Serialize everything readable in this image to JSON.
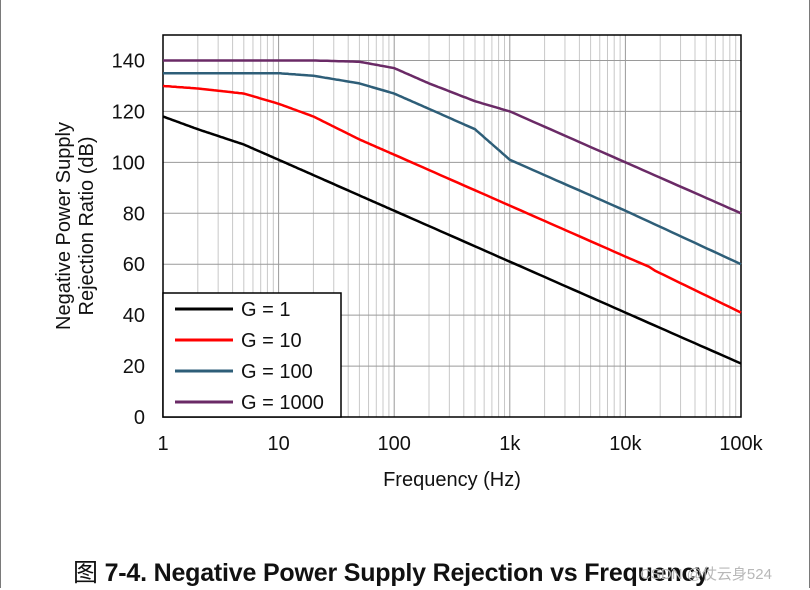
{
  "caption": {
    "figure_prefix": "图",
    "figure_title": "7-4. Negative Power Supply Rejection vs Frequency"
  },
  "watermark": "CSDN @仗云身524",
  "colors": {
    "g1": "#000000",
    "g10": "#ff0000",
    "g100": "#2e5e78",
    "g1000": "#6a2a66",
    "grid_major": "#9a9a9a",
    "grid_minor": "#c8c8c8"
  },
  "chart_data": {
    "type": "line",
    "title": "",
    "xlabel": "Frequency (Hz)",
    "ylabel_line1": "Negative Power Supply",
    "ylabel_line2": "Rejection Ratio (dB)",
    "xscale": "log",
    "xlim": [
      1,
      100000
    ],
    "ylim": [
      0,
      150
    ],
    "x_ticks": [
      1,
      10,
      100,
      1000,
      10000,
      100000
    ],
    "x_tick_labels": [
      "1",
      "10",
      "100",
      "1k",
      "10k",
      "100k"
    ],
    "y_ticks": [
      0,
      20,
      40,
      60,
      80,
      100,
      120,
      140
    ],
    "y_tick_labels": [
      "0",
      "20",
      "40",
      "60",
      "80",
      "100",
      "120",
      "140"
    ],
    "grid": true,
    "legend_position": "bottom-left",
    "series": [
      {
        "name": "G = 1",
        "color_key": "g1",
        "x": [
          1,
          2,
          5,
          10,
          20,
          50,
          100,
          1000,
          10000,
          100000
        ],
        "y": [
          118,
          113,
          107,
          101,
          95,
          87,
          81,
          61,
          41,
          21
        ]
      },
      {
        "name": "G = 10",
        "color_key": "g10",
        "x": [
          1,
          2,
          5,
          10,
          20,
          50,
          100,
          1000,
          10000,
          16000,
          18000,
          100000
        ],
        "y": [
          130,
          129,
          127,
          123,
          118,
          109,
          103,
          83,
          63,
          59,
          57.5,
          41
        ]
      },
      {
        "name": "G = 100",
        "color_key": "g100",
        "x": [
          1,
          10,
          20,
          50,
          100,
          200,
          500,
          1000,
          10000,
          100000
        ],
        "y": [
          135,
          135,
          134,
          131,
          127,
          121,
          113,
          101,
          81,
          60
        ]
      },
      {
        "name": "G = 1000",
        "color_key": "g1000",
        "x": [
          1,
          20,
          50,
          100,
          200,
          500,
          1000,
          10000,
          100000
        ],
        "y": [
          140,
          140,
          139.5,
          137,
          131,
          124,
          120,
          100,
          80
        ]
      }
    ]
  }
}
